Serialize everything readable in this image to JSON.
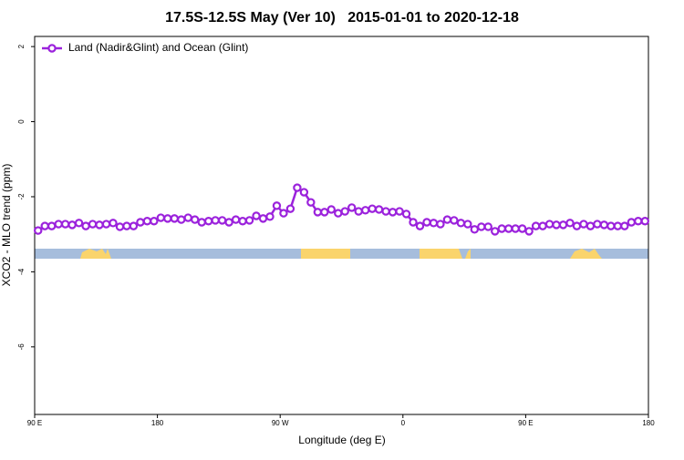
{
  "chart_data": {
    "type": "line",
    "title": "17.5S-12.5S May (Ver 10)   2015-01-01 to 2020-12-18",
    "xlabel": "Longitude (deg E)",
    "ylabel": "XCO2 - MLO trend (ppm)",
    "xlim": [
      90,
      540
    ],
    "xticks": [
      {
        "value": 90,
        "label": "90 E"
      },
      180,
      {
        "value": 270,
        "label": "90 W"
      },
      {
        "value": 360,
        "label": "0"
      },
      {
        "value": 450,
        "label": "90 E"
      },
      {
        "value": 540,
        "label": "180"
      }
    ],
    "ylim": [
      -7.8,
      2.27
    ],
    "yticks": [
      2,
      0,
      -2,
      -4,
      -6
    ],
    "legend": "upper left",
    "x": [
      92.5,
      97.5,
      102.5,
      107.5,
      112.5,
      117.5,
      122.5,
      127.5,
      132.5,
      137.5,
      142.5,
      147.5,
      152.5,
      157.5,
      162.5,
      167.5,
      172.5,
      177.5,
      182.5,
      187.5,
      192.5,
      197.5,
      202.5,
      207.5,
      212.5,
      217.5,
      222.5,
      227.5,
      232.5,
      237.5,
      242.5,
      247.5,
      252.5,
      257.5,
      262.5,
      267.5,
      272.5,
      277.5,
      282.5,
      287.5,
      292.5,
      297.5,
      302.5,
      307.5,
      312.5,
      317.5,
      322.5,
      327.5,
      332.5,
      337.5,
      342.5,
      347.5,
      352.5,
      357.5,
      362.5,
      367.5,
      372.5,
      377.5,
      382.5,
      387.5,
      392.5,
      397.5,
      402.5,
      407.5,
      412.5,
      417.5,
      422.5,
      427.5,
      432.5,
      437.5,
      442.5,
      447.5,
      452.5,
      457.5,
      462.5,
      467.5,
      472.5,
      477.5,
      482.5,
      487.5,
      492.5,
      497.5,
      502.5,
      507.5,
      512.5,
      517.5,
      522.5,
      527.5,
      532.5,
      537.5
    ],
    "series": [
      {
        "name": "Land (Nadir&Glint) and Ocean (Glint)",
        "color": "#9b22dc",
        "values": [
          -2.9,
          -2.78,
          -2.78,
          -2.73,
          -2.73,
          -2.75,
          -2.7,
          -2.78,
          -2.73,
          -2.75,
          -2.73,
          -2.7,
          -2.8,
          -2.78,
          -2.78,
          -2.68,
          -2.65,
          -2.65,
          -2.56,
          -2.58,
          -2.58,
          -2.61,
          -2.56,
          -2.61,
          -2.68,
          -2.65,
          -2.63,
          -2.63,
          -2.68,
          -2.61,
          -2.65,
          -2.63,
          -2.51,
          -2.58,
          -2.53,
          -2.24,
          -2.44,
          -2.32,
          -1.76,
          -1.88,
          -2.15,
          -2.41,
          -2.41,
          -2.34,
          -2.44,
          -2.39,
          -2.29,
          -2.39,
          -2.36,
          -2.32,
          -2.34,
          -2.39,
          -2.41,
          -2.39,
          -2.46,
          -2.68,
          -2.78,
          -2.68,
          -2.7,
          -2.73,
          -2.61,
          -2.63,
          -2.7,
          -2.73,
          -2.87,
          -2.8,
          -2.8,
          -2.92,
          -2.85,
          -2.85,
          -2.85,
          -2.85,
          -2.92,
          -2.78,
          -2.78,
          -2.73,
          -2.75,
          -2.75,
          -2.7,
          -2.78,
          -2.73,
          -2.78,
          -2.73,
          -2.75,
          -2.78,
          -2.78,
          -2.78,
          -2.68,
          -2.65,
          -2.65
        ]
      }
    ]
  }
}
